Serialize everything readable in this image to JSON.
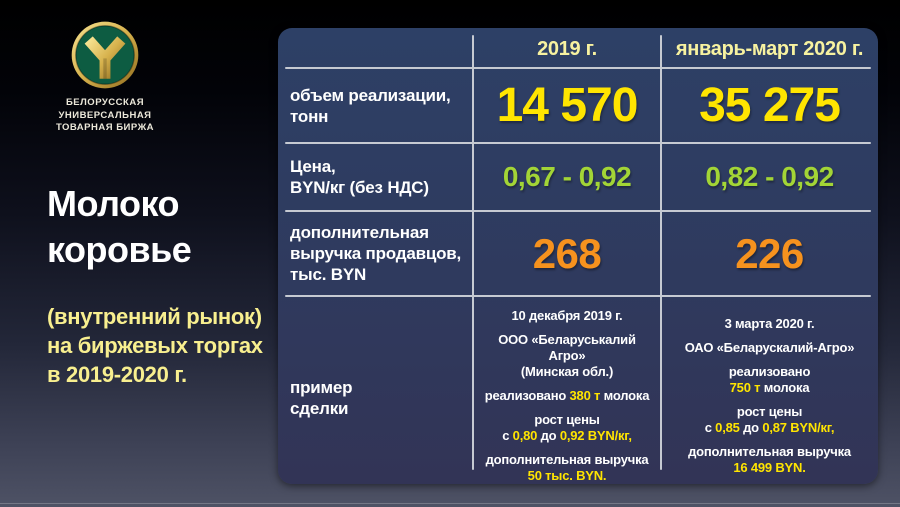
{
  "brand": {
    "logo_icon": "butb-trident-logo",
    "org_name_lines": [
      "БЕЛОРУССКАЯ",
      "УНИВЕРСАЛЬНАЯ",
      "ТОВАРНАЯ БИРЖА"
    ],
    "colors": {
      "logo_green": "#0d5c42",
      "logo_gold": "#d6b14c"
    }
  },
  "sidebar": {
    "title_lines": [
      "Молоко",
      "коровье"
    ],
    "subtitle_lines": [
      "(внутренний рынок)",
      "на биржевых торгах",
      "в 2019-2020 г."
    ]
  },
  "table": {
    "header": {
      "col_2019": "2019 г.",
      "col_2020": "январь-март 2020 г."
    },
    "rows": [
      {
        "name": "volume",
        "label": "объем реализации,\nтонн",
        "v2019": "14 570",
        "v2020": "35 275",
        "value_color": "#ffe500"
      },
      {
        "name": "price",
        "label": "Цена,\nBYN/кг (без НДС)",
        "v2019": "0,67 - 0,92",
        "v2020": "0,82 - 0,92",
        "value_color": "#a3d536"
      },
      {
        "name": "extra_revenue",
        "label": "дополнительная\nвыручка продавцов,\nтыс. BYN",
        "v2019": "268",
        "v2020": "226",
        "value_color": "#f6921e"
      }
    ],
    "deal_row": {
      "label": "пример\nсделки",
      "cell_2019": {
        "paras": [
          [
            {
              "t": "10 декабря 2019 г."
            }
          ],
          [
            {
              "t": "ООО «Беларуськалий Агро»\n(Минская обл.)"
            }
          ],
          [
            {
              "t": "реализовано "
            },
            {
              "t": "380 т",
              "hl": true
            },
            {
              "t": " молока"
            }
          ],
          [
            {
              "t": "рост цены\nс "
            },
            {
              "t": "0,80",
              "hl": true
            },
            {
              "t": " до "
            },
            {
              "t": "0,92 BYN/кг,",
              "hl": true
            }
          ],
          [
            {
              "t": "дополнительная выручка\n"
            },
            {
              "t": "50 тыс. BYN.",
              "hl": true
            }
          ]
        ]
      },
      "cell_2020": {
        "paras": [
          [
            {
              "t": "3 марта 2020 г."
            }
          ],
          [
            {
              "t": "ОАО «Беларускалий-Агро»"
            }
          ],
          [
            {
              "t": "реализовано\n"
            },
            {
              "t": "750 т",
              "hl": true
            },
            {
              "t": " молока"
            }
          ],
          [
            {
              "t": "рост цены\nс "
            },
            {
              "t": "0,85",
              "hl": true
            },
            {
              "t": " до "
            },
            {
              "t": "0,87 BYN/кг,",
              "hl": true
            }
          ],
          [
            {
              "t": "дополнительная выручка\n"
            },
            {
              "t": "16 499 BYN.",
              "hl": true
            }
          ]
        ]
      }
    },
    "colors": {
      "panel_top": "#2d4066",
      "panel_bottom": "#323456",
      "header_yellow": "#f7f2a0",
      "value_yellow": "#ffe500",
      "value_green": "#a3d536",
      "value_orange": "#f6921e",
      "divider": "#c6cad2"
    }
  }
}
